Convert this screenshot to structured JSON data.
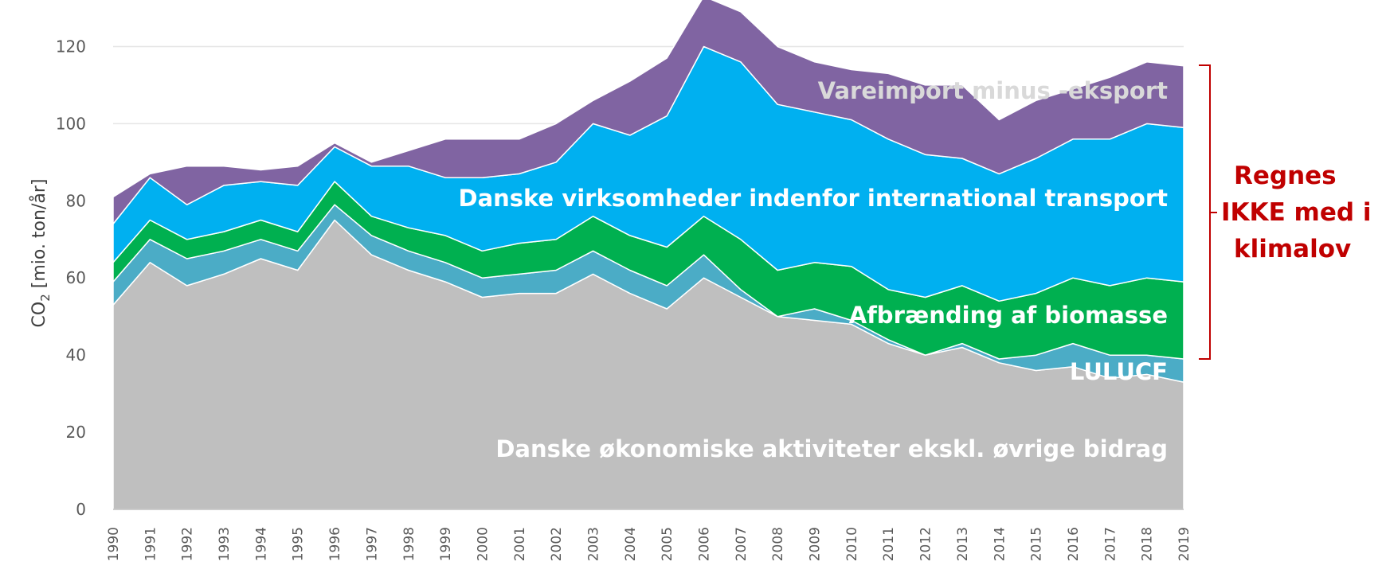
{
  "chart_data": {
    "type": "area",
    "stacked": true,
    "ylabel_main": "CO",
    "ylabel_sub": "2",
    "ylabel_rest": " [mio. ton/år]",
    "ylim": [
      0,
      130
    ],
    "yticks": [
      0,
      20,
      40,
      60,
      80,
      100,
      120
    ],
    "grid": true,
    "x": [
      "1990",
      "1991",
      "1992",
      "1993",
      "1994",
      "1995",
      "1996",
      "1997",
      "1998",
      "1999",
      "2000",
      "2001",
      "2002",
      "2003",
      "2004",
      "2005",
      "2006",
      "2007",
      "2008",
      "2009",
      "2010",
      "2011",
      "2012",
      "2013",
      "2014",
      "2015",
      "2016",
      "2017",
      "2018",
      "2019"
    ],
    "series": [
      {
        "name": "Danske økonomiske aktiviteter ekskl. øvrige bidrag",
        "color": "#bfbfbf",
        "label_color": "#ffffff",
        "values": [
          53,
          64,
          58,
          61,
          65,
          62,
          75,
          66,
          62,
          59,
          55,
          56,
          56,
          61,
          56,
          52,
          60,
          55,
          50,
          49,
          48,
          43,
          40,
          42,
          38,
          36,
          37,
          34,
          35,
          33
        ]
      },
      {
        "name": "LULUCF",
        "color": "#4bacc6",
        "label_color": "#ffffff",
        "values": [
          6,
          6,
          7,
          6,
          5,
          5,
          4,
          5,
          5,
          5,
          5,
          5,
          6,
          6,
          6,
          6,
          6,
          2,
          0,
          3,
          1,
          1,
          0,
          1,
          1,
          4,
          6,
          6,
          5,
          6
        ]
      },
      {
        "name": "Afbrænding af biomasse",
        "color": "#00b050",
        "label_color": "#ffffff",
        "values": [
          5,
          5,
          5,
          5,
          5,
          5,
          6,
          5,
          6,
          7,
          7,
          8,
          8,
          9,
          9,
          10,
          10,
          13,
          12,
          12,
          14,
          13,
          15,
          15,
          15,
          16,
          17,
          18,
          20,
          20
        ]
      },
      {
        "name": "Danske virksomheder indenfor international transport",
        "color": "#00b0f0",
        "label_color": "#ffffff",
        "values": [
          10,
          11,
          9,
          12,
          10,
          12,
          9,
          13,
          16,
          15,
          19,
          18,
          20,
          24,
          26,
          34,
          44,
          46,
          43,
          39,
          38,
          39,
          37,
          33,
          33,
          35,
          36,
          38,
          40,
          40
        ]
      },
      {
        "name": "Vareimport minus -eksport",
        "color": "#8064a2",
        "label_color": "#d9d9d9",
        "values": [
          7,
          1,
          10,
          5,
          3,
          5,
          1,
          1,
          4,
          10,
          10,
          9,
          10,
          6,
          14,
          15,
          13,
          13,
          15,
          13,
          13,
          17,
          18,
          19,
          14,
          15,
          13,
          16,
          16,
          16
        ]
      }
    ],
    "annotation": {
      "lines": [
        "Regnes",
        "IKKE med i",
        "klimalov"
      ],
      "color": "#c00000"
    }
  }
}
